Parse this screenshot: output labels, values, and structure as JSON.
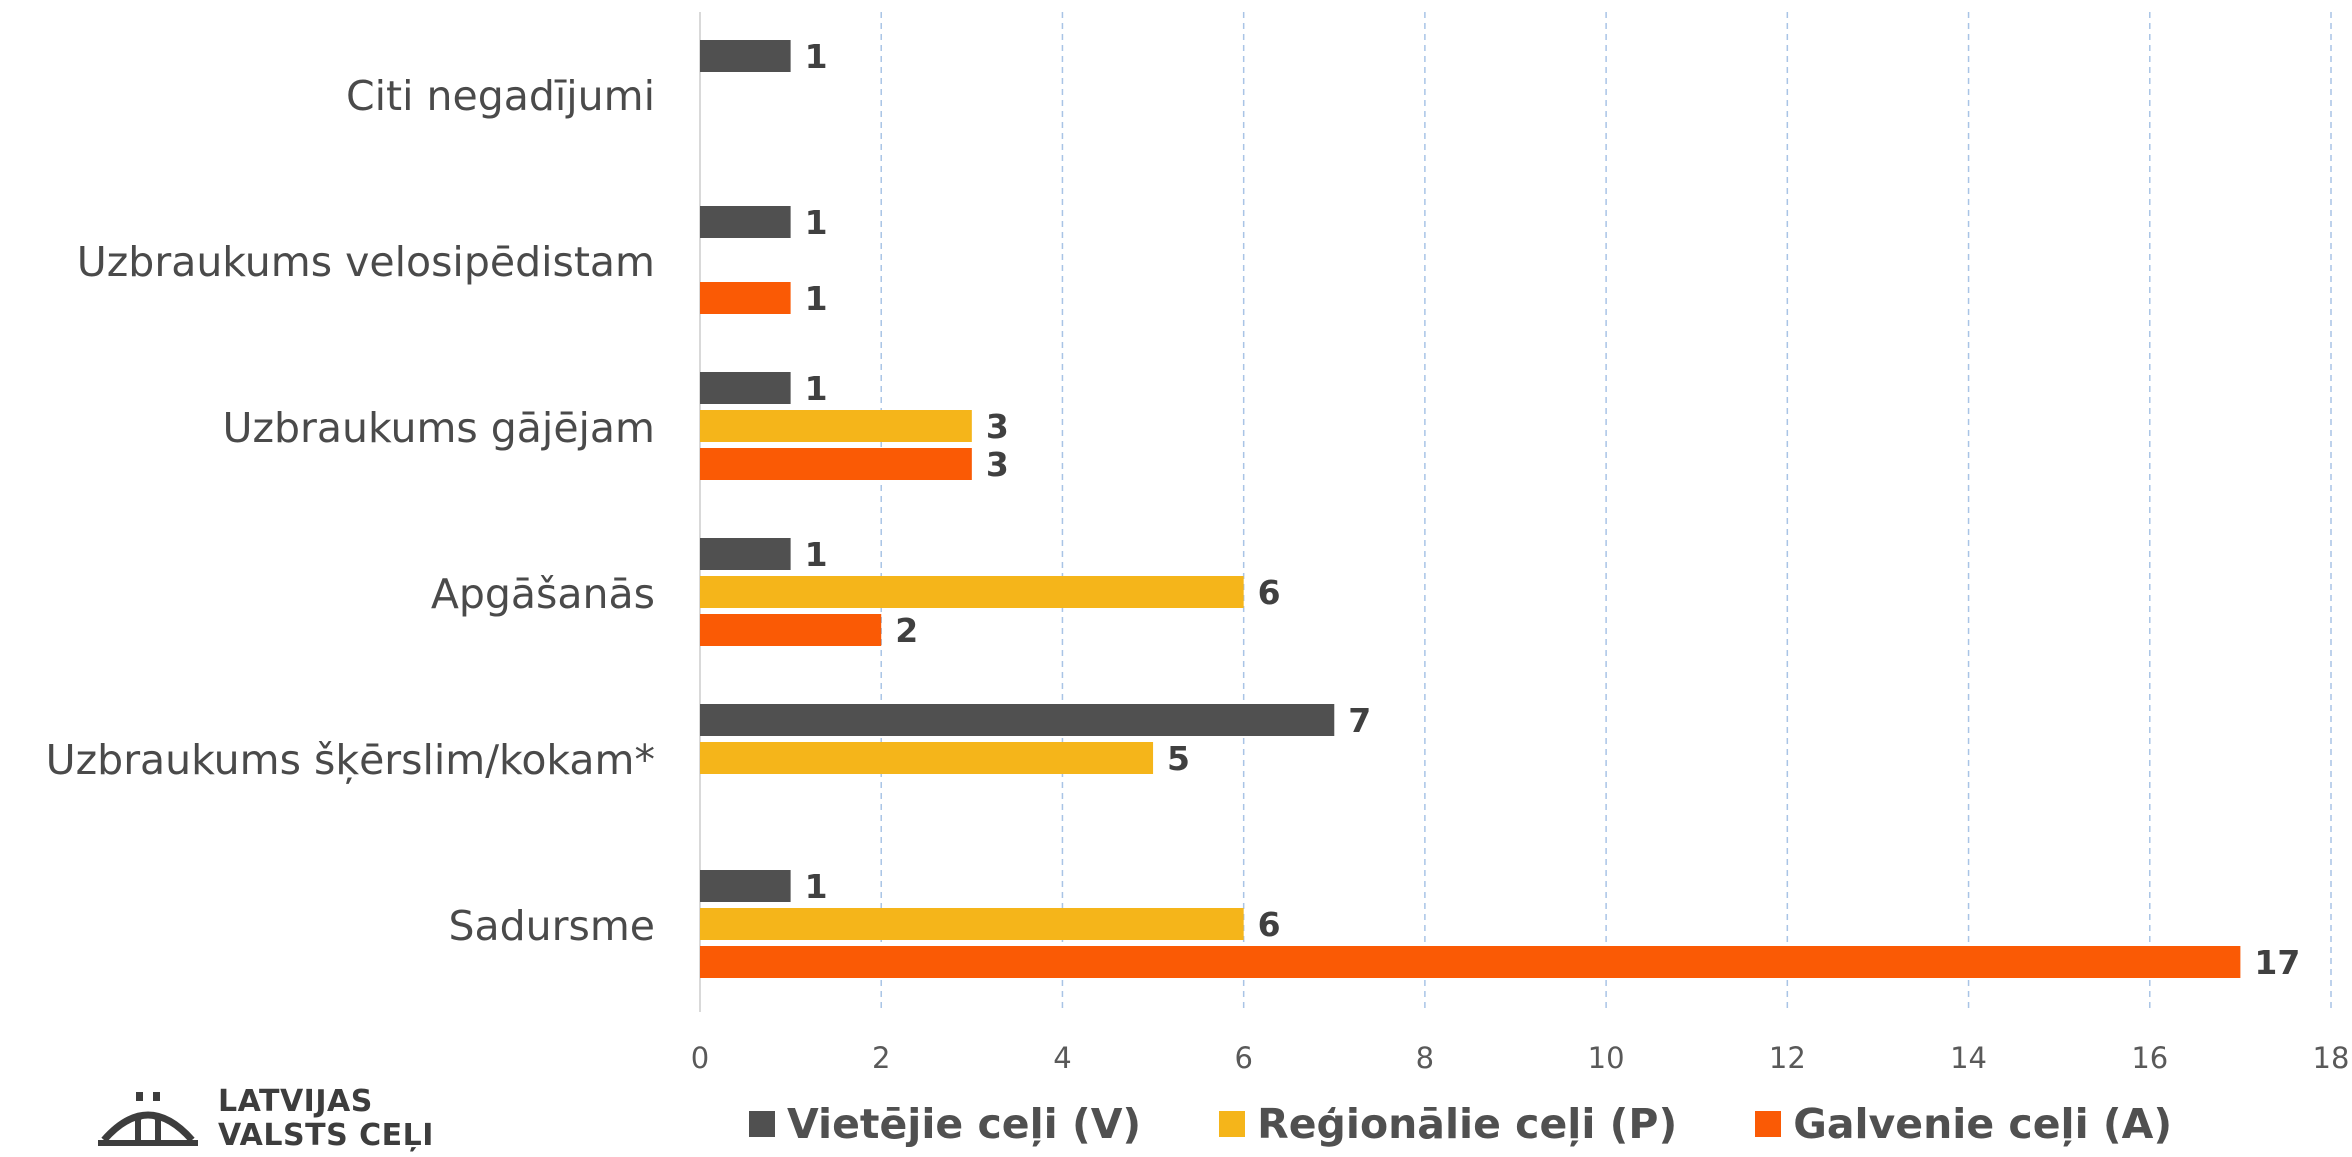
{
  "chart_data": {
    "type": "bar",
    "orientation": "horizontal",
    "categories": [
      "Citi negadījumi",
      "Uzbraukums velosipēdistam",
      "Uzbraukums gājējam",
      "Apgāšanās",
      "Uzbraukums šķērslim/kokam*",
      "Sadursme"
    ],
    "series": [
      {
        "name": "Vietējie ceļi (V)",
        "color": "#505050",
        "values": [
          1,
          1,
          1,
          1,
          7,
          1
        ]
      },
      {
        "name": "Reģionālie ceļi (P)",
        "color": "#F5B51A",
        "values": [
          null,
          null,
          3,
          6,
          5,
          6
        ]
      },
      {
        "name": "Galvenie ceļi (A)",
        "color": "#FA5A05",
        "values": [
          null,
          1,
          3,
          2,
          null,
          17
        ]
      }
    ],
    "xlim": [
      0,
      18
    ],
    "xticks": [
      0,
      2,
      4,
      6,
      8,
      10,
      12,
      14,
      16,
      18
    ],
    "grid": "vertical-dashed",
    "legend_position": "bottom",
    "data_labels": true
  },
  "logo": {
    "line1": "LATVIJAS",
    "line2": "VALSTS CEĻI"
  }
}
